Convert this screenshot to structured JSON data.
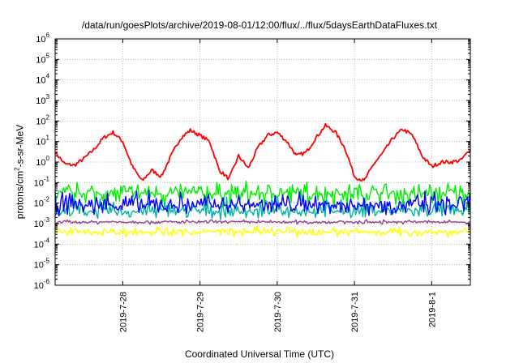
{
  "chart_data": {
    "type": "line",
    "title": "/data/run/goesPlots/archive/2019-08-01/12:00/flux/../flux/5daysEarthDataFluxes.txt",
    "xlabel": "Coordinated Universal Time (UTC)",
    "ylabel": "protons/cm²-s-sr-MeV",
    "ylabel_parts": [
      "protons/cm",
      "2",
      "-s-sr-MeV"
    ],
    "yscale": "log",
    "ylim": [
      1e-06,
      1000000.0
    ],
    "yticks": [
      {
        "exp": "-6"
      },
      {
        "exp": "-5"
      },
      {
        "exp": "-4"
      },
      {
        "exp": "-3"
      },
      {
        "exp": "-2"
      },
      {
        "exp": "-1"
      },
      {
        "exp": "0"
      },
      {
        "exp": "1"
      },
      {
        "exp": "2"
      },
      {
        "exp": "3"
      },
      {
        "exp": "4"
      },
      {
        "exp": "5"
      },
      {
        "exp": "6"
      }
    ],
    "xlim": [
      "2019-07-27 03:00",
      "2019-08-01 12:00"
    ],
    "xticks": [
      "2019-7-28",
      "2019-7-29",
      "2019-7-30",
      "2019-7-31",
      "2019-8-1"
    ],
    "grid": true,
    "legend": "none",
    "series": [
      {
        "color": "#ff0000",
        "style": "smooth",
        "x": [
          "2019-07-27 03:00",
          "2019-07-27 06:00",
          "2019-07-27 09:00",
          "2019-07-27 12:00",
          "2019-07-27 15:00",
          "2019-07-27 18:00",
          "2019-07-27 21:00",
          "2019-07-28 00:00",
          "2019-07-28 03:00",
          "2019-07-28 06:00",
          "2019-07-28 09:00",
          "2019-07-28 12:00",
          "2019-07-28 15:00",
          "2019-07-28 18:00",
          "2019-07-28 21:00",
          "2019-07-29 00:00",
          "2019-07-29 03:00",
          "2019-07-29 06:00",
          "2019-07-29 09:00",
          "2019-07-29 12:00",
          "2019-07-29 15:00",
          "2019-07-29 18:00",
          "2019-07-29 21:00",
          "2019-07-30 00:00",
          "2019-07-30 03:00",
          "2019-07-30 06:00",
          "2019-07-30 09:00",
          "2019-07-30 12:00",
          "2019-07-30 15:00",
          "2019-07-30 18:00",
          "2019-07-30 21:00",
          "2019-07-31 00:00",
          "2019-07-31 03:00",
          "2019-07-31 06:00",
          "2019-07-31 09:00",
          "2019-07-31 12:00",
          "2019-07-31 15:00",
          "2019-07-31 18:00",
          "2019-07-31 21:00",
          "2019-08-01 00:00",
          "2019-08-01 03:00",
          "2019-08-01 06:00",
          "2019-08-01 09:00",
          "2019-08-01 12:00"
        ],
        "y": [
          3,
          0.8,
          0.7,
          1.5,
          4,
          15,
          28,
          10,
          0.6,
          0.12,
          0.4,
          0.2,
          2,
          15,
          35,
          20,
          10,
          0.4,
          0.15,
          2,
          0.5,
          5,
          20,
          28,
          10,
          2,
          3,
          15,
          60,
          30,
          5,
          0.2,
          0.12,
          0.8,
          3,
          15,
          40,
          20,
          2,
          0.6,
          1,
          1,
          1.2,
          4
        ]
      },
      {
        "color": "#00ee00",
        "style": "noise",
        "x": [
          "2019-07-27 03:00",
          "2019-08-01 12:00"
        ],
        "y": [
          0.03,
          0.03
        ],
        "y_range": [
          0.004,
          0.15
        ]
      },
      {
        "color": "#00b4a0",
        "style": "noise",
        "x": [
          "2019-07-27 03:00",
          "2019-08-01 12:00"
        ],
        "y": [
          0.004,
          0.004
        ],
        "y_range": [
          0.0015,
          0.02
        ]
      },
      {
        "color": "#0000ff",
        "style": "noise",
        "x": [
          "2019-07-27 03:00",
          "2019-08-01 12:00"
        ],
        "y": [
          0.008,
          0.008
        ],
        "y_range": [
          0.002,
          0.05
        ]
      },
      {
        "color": "#9b3b8a",
        "style": "noise",
        "x": [
          "2019-07-27 03:00",
          "2019-08-01 12:00"
        ],
        "y": [
          0.0012,
          0.0012
        ],
        "y_range": [
          0.0009,
          0.0016
        ]
      },
      {
        "color": "#ffff00",
        "style": "noise",
        "x": [
          "2019-07-27 03:00",
          "2019-08-01 12:00"
        ],
        "y": [
          0.0004,
          0.0004
        ],
        "y_range": [
          0.0002,
          0.0008
        ]
      }
    ]
  }
}
